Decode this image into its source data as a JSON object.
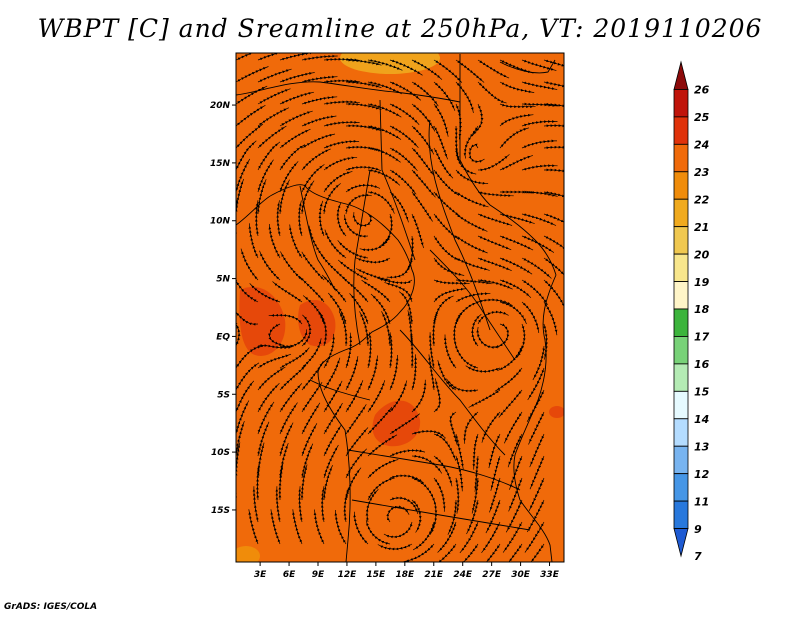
{
  "title": "WBPT [C] and Sreamline at 250hPa, VT: 2019110206",
  "footer": "GrADS: IGES/COLA",
  "map": {
    "background_color": "#f06a0a",
    "lat_labels": [
      "20N",
      "15N",
      "10N",
      "5N",
      "EQ",
      "5S",
      "10S",
      "15S"
    ],
    "lat_values": [
      20,
      15,
      10,
      5,
      0,
      -5,
      -10,
      -15
    ],
    "lon_labels": [
      "3E",
      "6E",
      "9E",
      "12E",
      "15E",
      "18E",
      "21E",
      "24E",
      "27E",
      "30E",
      "33E"
    ],
    "lon_values": [
      3,
      6,
      9,
      12,
      15,
      18,
      21,
      24,
      27,
      30,
      33
    ],
    "lon_range": [
      0.5,
      34.5
    ],
    "lat_range": [
      -19.5,
      24.5
    ]
  },
  "colorbar": {
    "labels": [
      "26",
      "25",
      "24",
      "23",
      "22",
      "21",
      "20",
      "19",
      "18",
      "17",
      "16",
      "15",
      "14",
      "13",
      "12",
      "11",
      "9",
      "7"
    ],
    "colors": [
      "#8c0a0a",
      "#c0140a",
      "#e0320a",
      "#f06a0a",
      "#f08c0a",
      "#f0aa1e",
      "#f0c850",
      "#f8e68c",
      "#fff5c8",
      "#3cb43c",
      "#78d278",
      "#b4ebb4",
      "#e6faff",
      "#b4dcff",
      "#78b4f0",
      "#4696e6",
      "#2878dc",
      "#1e5ad2"
    ]
  }
}
